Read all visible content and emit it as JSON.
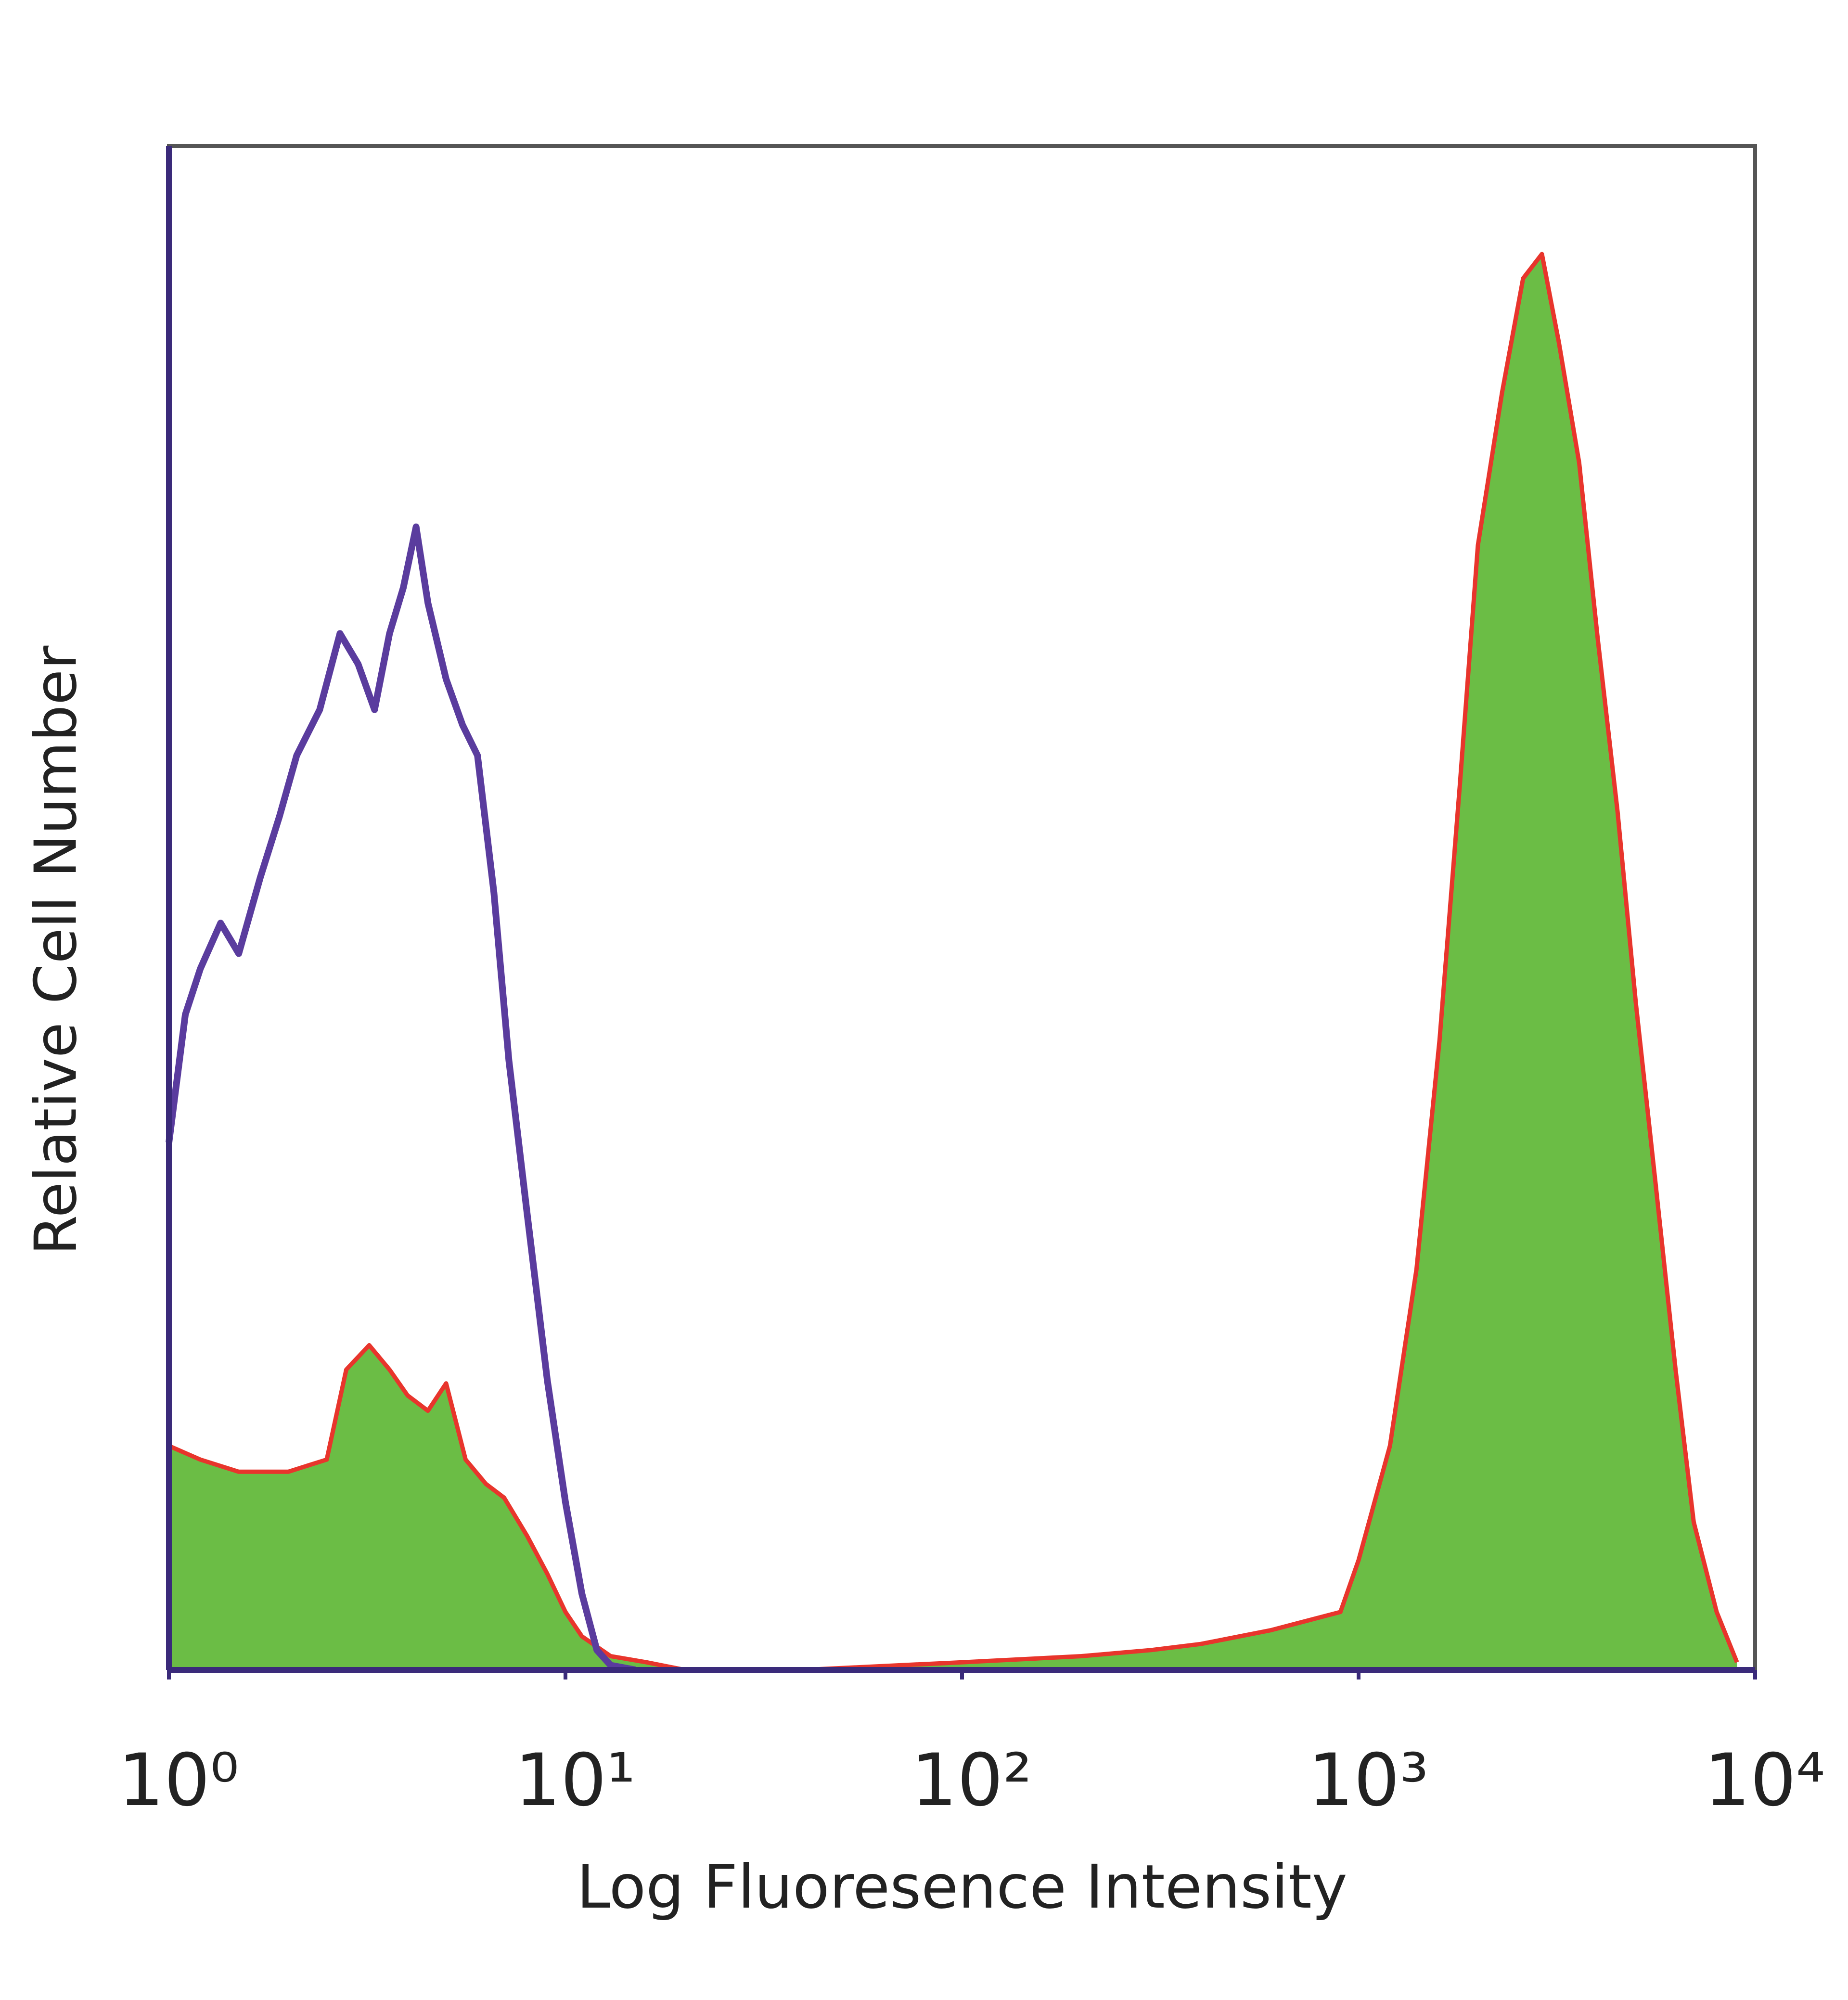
{
  "chart_data": {
    "type": "histogram-overlay",
    "x_label": "Log Fluoresence Intensity",
    "y_label": "Relative Cell Number",
    "xscale": "log",
    "xlim": [
      1,
      10000
    ],
    "xticks": [
      {
        "value": 1,
        "label": "10⁰"
      },
      {
        "value": 10,
        "label": "10¹"
      },
      {
        "value": 100,
        "label": "10²"
      },
      {
        "value": 1000,
        "label": "10³"
      },
      {
        "value": 10000,
        "label": "10⁴"
      }
    ],
    "ylim": [
      0,
      100
    ],
    "grid": false,
    "series": [
      {
        "kind": "area",
        "color": "#6bbd45",
        "edge_color": "#e8352c",
        "x": [
          1,
          1.2,
          1.5,
          2,
          2.5,
          2.8,
          3.2,
          3.6,
          4,
          4.5,
          5,
          5.6,
          6.3,
          7,
          8,
          9,
          10,
          11,
          13,
          16,
          20,
          40,
          100,
          200,
          300,
          400,
          600,
          900,
          1000,
          1200,
          1400,
          1600,
          1800,
          2000,
          2300,
          2600,
          2900,
          3200,
          3600,
          4000,
          4500,
          5000,
          5600,
          6300,
          7000,
          8000,
          9000
        ],
        "values": [
          14.7,
          13.8,
          13,
          13,
          13.8,
          19.7,
          21.3,
          19.7,
          18,
          17,
          18.8,
          13.8,
          12.2,
          11.3,
          8.8,
          6.3,
          3.8,
          2.2,
          0.9,
          0.5,
          0,
          0,
          0.5,
          0.9,
          1.3,
          1.7,
          2.6,
          3.8,
          7.2,
          14.7,
          26.3,
          41.3,
          58,
          73.8,
          83.8,
          91.3,
          92.9,
          87.1,
          79.2,
          67.9,
          56.3,
          43.8,
          32.1,
          19.7,
          9.7,
          3.8,
          0.5
        ]
      },
      {
        "kind": "line",
        "color": "#5a3c9e",
        "x": [
          1,
          1.1,
          1.2,
          1.35,
          1.5,
          1.7,
          1.9,
          2.1,
          2.4,
          2.7,
          3,
          3.3,
          3.6,
          3.9,
          4.2,
          4.5,
          5,
          5.5,
          6,
          6.6,
          7.2,
          8,
          9,
          10,
          11,
          12,
          13,
          15
        ],
        "values": [
          34.6,
          43,
          46,
          49,
          47,
          52,
          56,
          60,
          63,
          68,
          66,
          63,
          68,
          71,
          75,
          70,
          65,
          62,
          60,
          51,
          40,
          30,
          19,
          11,
          5,
          1.3,
          0.3,
          0
        ]
      }
    ]
  }
}
